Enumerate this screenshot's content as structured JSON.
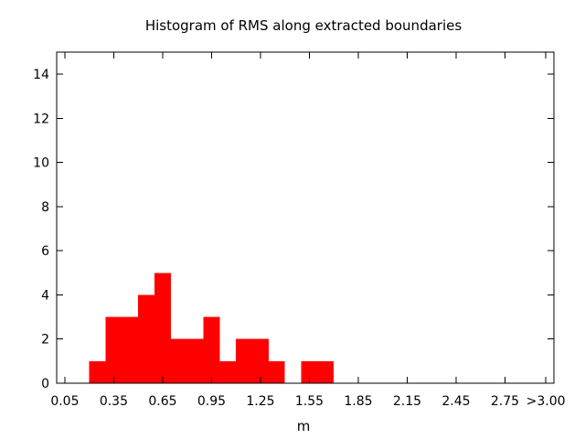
{
  "chart_data": {
    "type": "bar",
    "title": "Histogram of RMS along extracted boundaries",
    "xlabel": "m",
    "ylabel": "",
    "ylim": [
      0,
      15
    ],
    "yticks": [
      0,
      2,
      4,
      6,
      8,
      10,
      12,
      14
    ],
    "xlim": [
      0.0,
      3.05
    ],
    "xticks": [
      {
        "value": 0.05,
        "label": "0.05"
      },
      {
        "value": 0.35,
        "label": "0.35"
      },
      {
        "value": 0.65,
        "label": "0.65"
      },
      {
        "value": 0.95,
        "label": "0.95"
      },
      {
        "value": 1.25,
        "label": "1.25"
      },
      {
        "value": 1.55,
        "label": "1.55"
      },
      {
        "value": 1.85,
        "label": "1.85"
      },
      {
        "value": 2.15,
        "label": "2.15"
      },
      {
        "value": 2.45,
        "label": "2.45"
      },
      {
        "value": 2.75,
        "label": "2.75"
      },
      {
        "value": 3.0,
        "label": ">3.00"
      }
    ],
    "bin_width": 0.1,
    "bins": [
      {
        "x": 0.25,
        "count": 1
      },
      {
        "x": 0.35,
        "count": 3
      },
      {
        "x": 0.45,
        "count": 3
      },
      {
        "x": 0.55,
        "count": 4
      },
      {
        "x": 0.65,
        "count": 5
      },
      {
        "x": 0.75,
        "count": 2
      },
      {
        "x": 0.85,
        "count": 2
      },
      {
        "x": 0.95,
        "count": 3
      },
      {
        "x": 1.05,
        "count": 1
      },
      {
        "x": 1.15,
        "count": 2
      },
      {
        "x": 1.25,
        "count": 2
      },
      {
        "x": 1.35,
        "count": 1
      },
      {
        "x": 1.55,
        "count": 1
      },
      {
        "x": 1.65,
        "count": 1
      }
    ],
    "bar_color": "#ff0000",
    "grid": false,
    "legend": "none"
  }
}
